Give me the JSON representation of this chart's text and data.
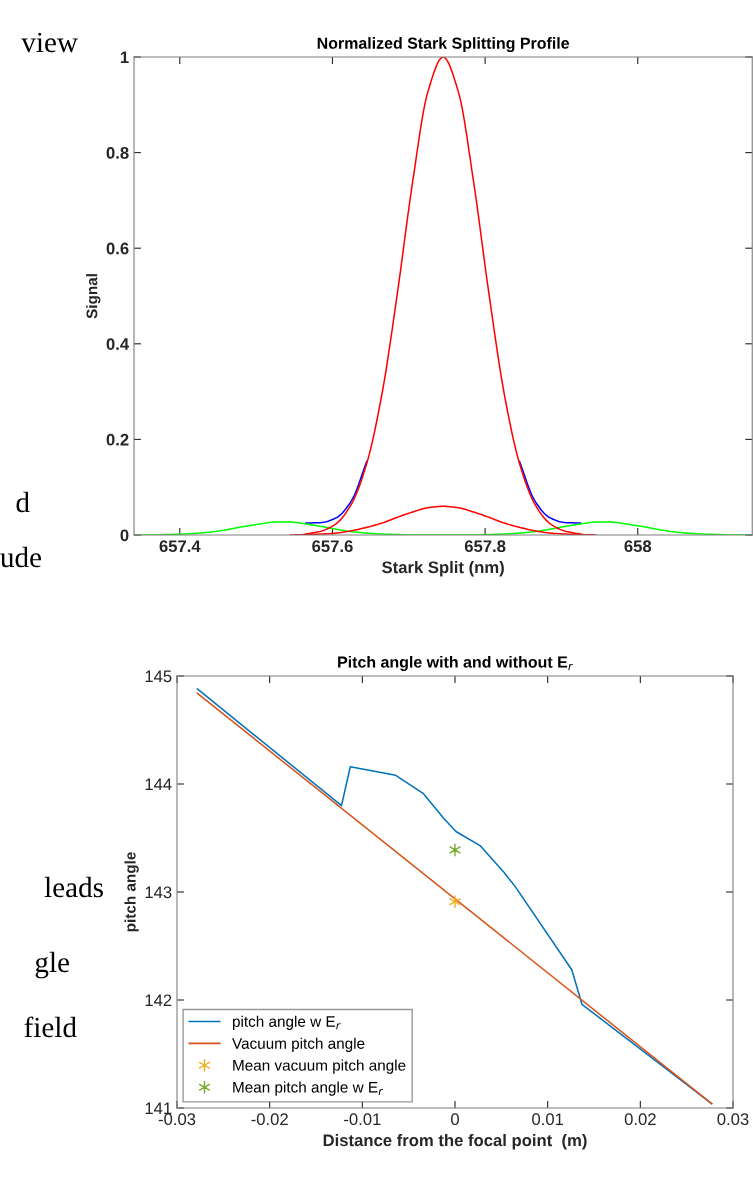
{
  "chart_data": [
    {
      "type": "line",
      "title": "Normalized Stark Splitting Profile",
      "xlabel": "Stark Split (nm)",
      "ylabel": "Signal",
      "x": [
        657.345,
        657.365,
        657.385,
        657.405,
        657.425,
        657.445,
        657.465,
        657.485,
        657.505,
        657.525,
        657.545,
        657.565,
        657.585,
        657.605,
        657.625,
        657.645,
        657.665,
        657.685,
        657.705,
        657.725,
        657.745,
        657.765,
        657.785,
        657.805,
        657.825,
        657.845,
        657.865,
        657.885,
        657.905,
        657.925,
        657.945,
        657.965,
        657.985,
        658.005,
        658.025,
        658.045,
        658.065,
        658.085,
        658.105,
        658.125,
        658.145
      ],
      "series": [
        {
          "color": "#0000ff",
          "values": [
            null,
            null,
            null,
            null,
            null,
            null,
            null,
            null,
            null,
            null,
            null,
            0.025,
            0.026,
            0.036,
            0.072,
            0.154,
            null,
            null,
            null,
            null,
            null,
            null,
            null,
            null,
            null,
            0.154,
            0.072,
            0.036,
            0.026,
            0.025,
            null,
            null,
            null,
            null,
            null,
            null,
            null,
            null,
            null,
            null,
            null
          ]
        },
        {
          "color": "#00ff00",
          "values": [
            0,
            0,
            0.001,
            0.002,
            0.004,
            0.007,
            0.012,
            0.018,
            0.023,
            0.027,
            0.027,
            0.023,
            0.018,
            0.012,
            0.007,
            0.004,
            0.002,
            0.001,
            0,
            0,
            0,
            0,
            0,
            0.001,
            0.002,
            0.004,
            0.007,
            0.012,
            0.018,
            0.023,
            0.027,
            0.027,
            0.023,
            0.018,
            0.012,
            0.007,
            0.004,
            0.002,
            0.001,
            0,
            0
          ]
        },
        {
          "color": "#ff0000",
          "values": [
            null,
            null,
            null,
            null,
            null,
            null,
            null,
            null,
            null,
            null,
            0,
            0.001,
            0.002,
            0.004,
            0.009,
            0.016,
            0.025,
            0.037,
            0.048,
            0.057,
            0.06,
            0.057,
            0.048,
            0.037,
            0.025,
            0.016,
            0.009,
            0.004,
            0.002,
            0.001,
            0,
            null,
            null,
            null,
            null,
            null,
            null,
            null,
            null,
            null,
            null
          ]
        },
        {
          "color": "#ff0000",
          "values": [
            null,
            null,
            null,
            null,
            null,
            null,
            null,
            null,
            null,
            null,
            null,
            0.002,
            0.008,
            0.024,
            0.065,
            0.15,
            0.296,
            0.505,
            0.738,
            0.927,
            1,
            0.927,
            0.738,
            0.505,
            0.296,
            0.15,
            0.065,
            0.024,
            0.008,
            0.002,
            null,
            null,
            null,
            null,
            null,
            null,
            null,
            null,
            null,
            null,
            null
          ]
        }
      ],
      "xlim": [
        657.34,
        658.15
      ],
      "xticks": [
        657.4,
        657.6,
        657.8,
        658
      ],
      "ylim": [
        0,
        1
      ],
      "yticks": [
        0,
        0.2,
        0.4,
        0.6,
        0.8,
        1
      ],
      "grid": false,
      "legend": false,
      "annotations": [
        "view",
        "d",
        "ude"
      ]
    },
    {
      "type": "line",
      "title": "Pitch angle with and without E$_{r}$",
      "xlabel": "Distance from the focal point  (m)",
      "ylabel": "pitch angle",
      "series": [
        {
          "name": "pitch angle w E$_{r}$",
          "color": "#0072bd",
          "x": [
            -0.0278,
            -0.01225,
            -0.0113,
            -0.0064,
            -0.0034,
            -0.0012,
            0.0001,
            0.0027,
            0.0053,
            0.0065,
            0.0126,
            0.0137,
            0.0277
          ],
          "values": [
            144.88,
            143.8,
            144.16,
            144.08,
            143.91,
            143.68,
            143.56,
            143.43,
            143.18,
            143.05,
            142.28,
            141.96,
            141.04
          ]
        },
        {
          "name": "Vacuum pitch angle",
          "color": "#d95319",
          "x": [
            -0.0278,
            0.0277
          ],
          "values": [
            144.84,
            141.04
          ]
        },
        {
          "name": "Mean vacuum pitch angle",
          "type": "scatter",
          "marker": "cross",
          "color": "#edb120",
          "x": [
            0
          ],
          "values": [
            142.91
          ]
        },
        {
          "name": "Mean pitch angle w E$_{r}$",
          "type": "scatter",
          "marker": "cross",
          "color": "#77ac30",
          "x": [
            0
          ],
          "values": [
            143.39
          ]
        }
      ],
      "xlim": [
        -0.03,
        0.03
      ],
      "xticks": [
        -0.03,
        -0.02,
        -0.01,
        0,
        0.01,
        0.02,
        0.03
      ],
      "ylim": [
        141,
        145
      ],
      "yticks": [
        141,
        142,
        143,
        144,
        145
      ],
      "grid": false,
      "legend": "bottom left",
      "annotations": [
        "leads",
        "gle",
        "field"
      ]
    }
  ]
}
